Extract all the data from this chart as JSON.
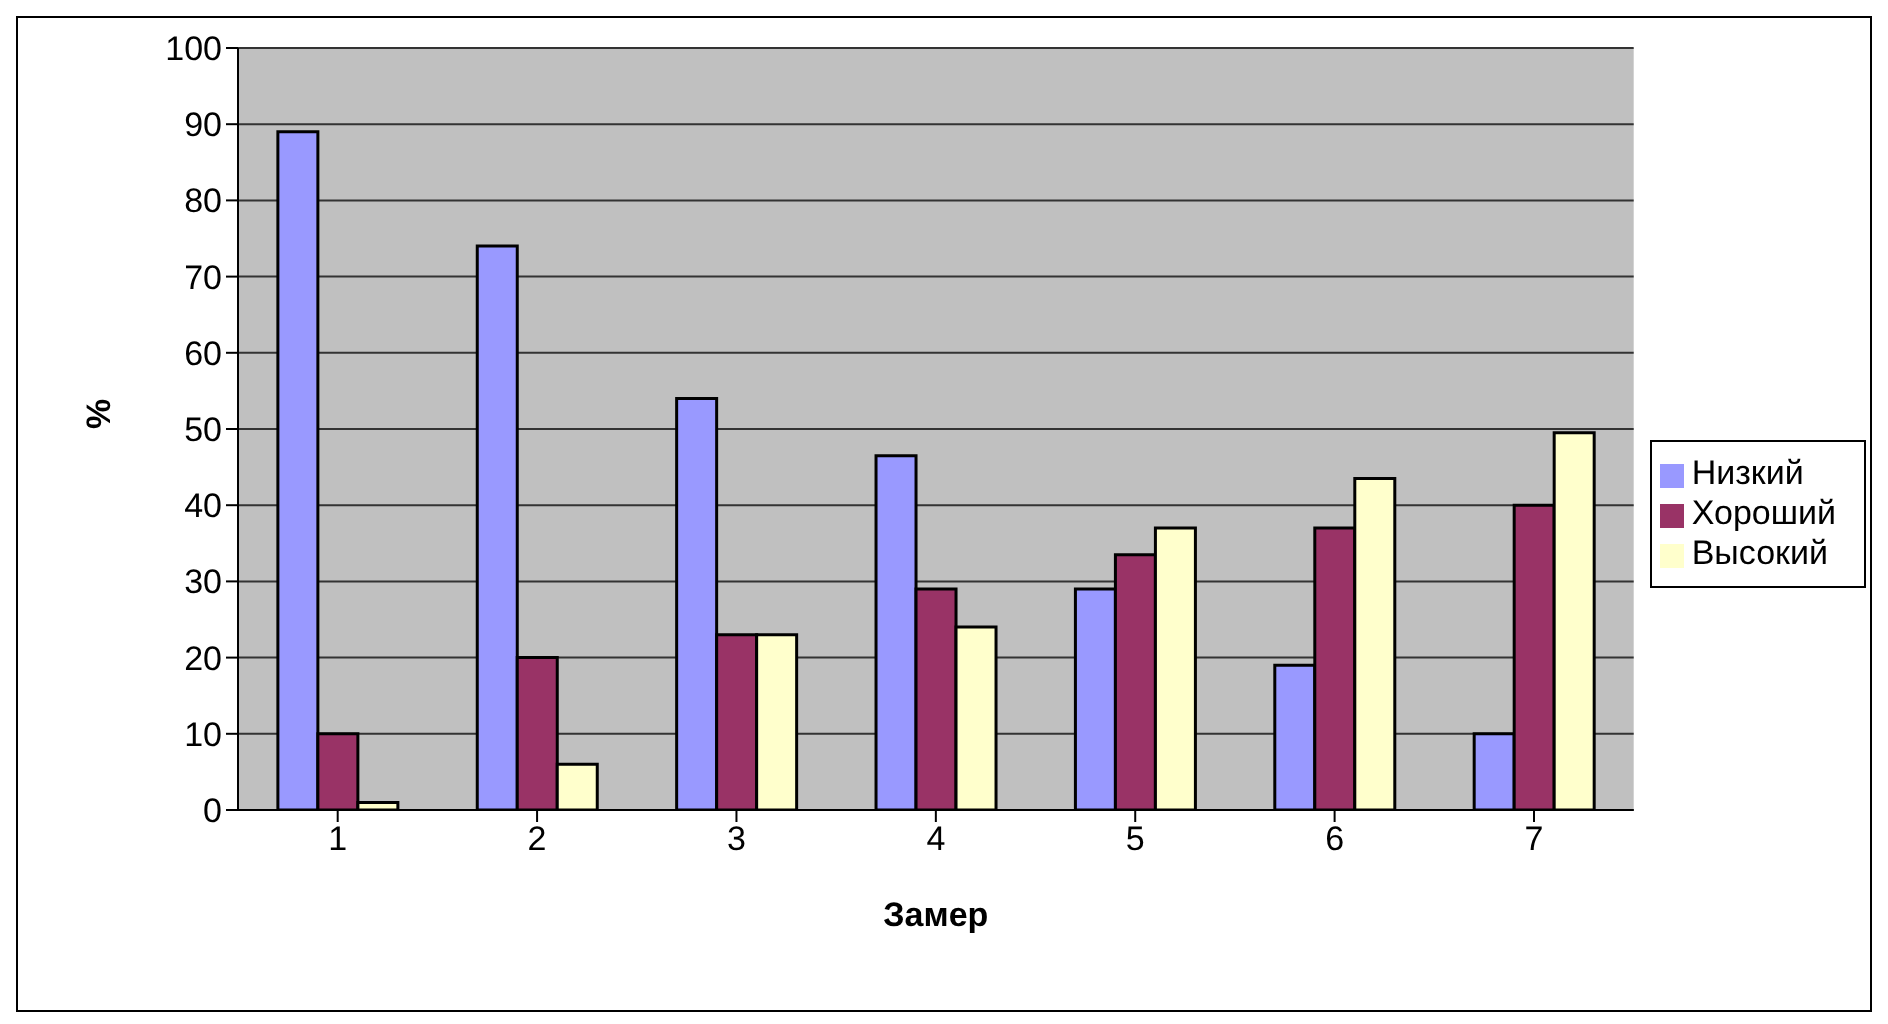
{
  "chart_data": {
    "type": "bar",
    "xlabel": "Замер",
    "ylabel": "%",
    "categories": [
      "1",
      "2",
      "3",
      "4",
      "5",
      "6",
      "7"
    ],
    "series": [
      {
        "name": "Низкий",
        "color": "#9999ff",
        "values": [
          89,
          74,
          54,
          46.5,
          29,
          19,
          10
        ]
      },
      {
        "name": "Хороший",
        "color": "#993366",
        "values": [
          10,
          20,
          23,
          29,
          33.5,
          37,
          40
        ]
      },
      {
        "name": "Высокий",
        "color": "#ffffcc",
        "values": [
          1,
          6,
          23,
          24,
          37,
          43.5,
          49.5
        ]
      }
    ],
    "ylim": [
      0,
      100
    ],
    "yticks": [
      0,
      10,
      20,
      30,
      40,
      50,
      60,
      70,
      80,
      90,
      100
    ],
    "grid": "y",
    "legend": "right"
  }
}
